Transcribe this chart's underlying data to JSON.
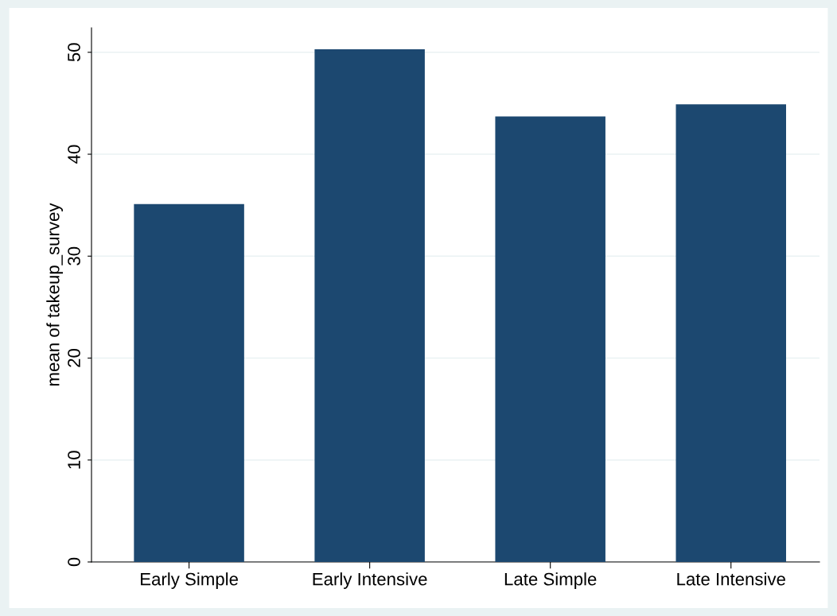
{
  "chart_data": {
    "type": "bar",
    "ylabel": "mean of takeup_survey",
    "categories": [
      "Early Simple",
      "Early Intensive",
      "Late Simple",
      "Late Intensive"
    ],
    "values": [
      35.1,
      50.3,
      43.7,
      44.9
    ],
    "color": "#1c4870",
    "ylim": [
      0,
      52.4
    ],
    "yticks": [
      0,
      10,
      20,
      30,
      40,
      50
    ],
    "grid": "y",
    "legend": false
  }
}
